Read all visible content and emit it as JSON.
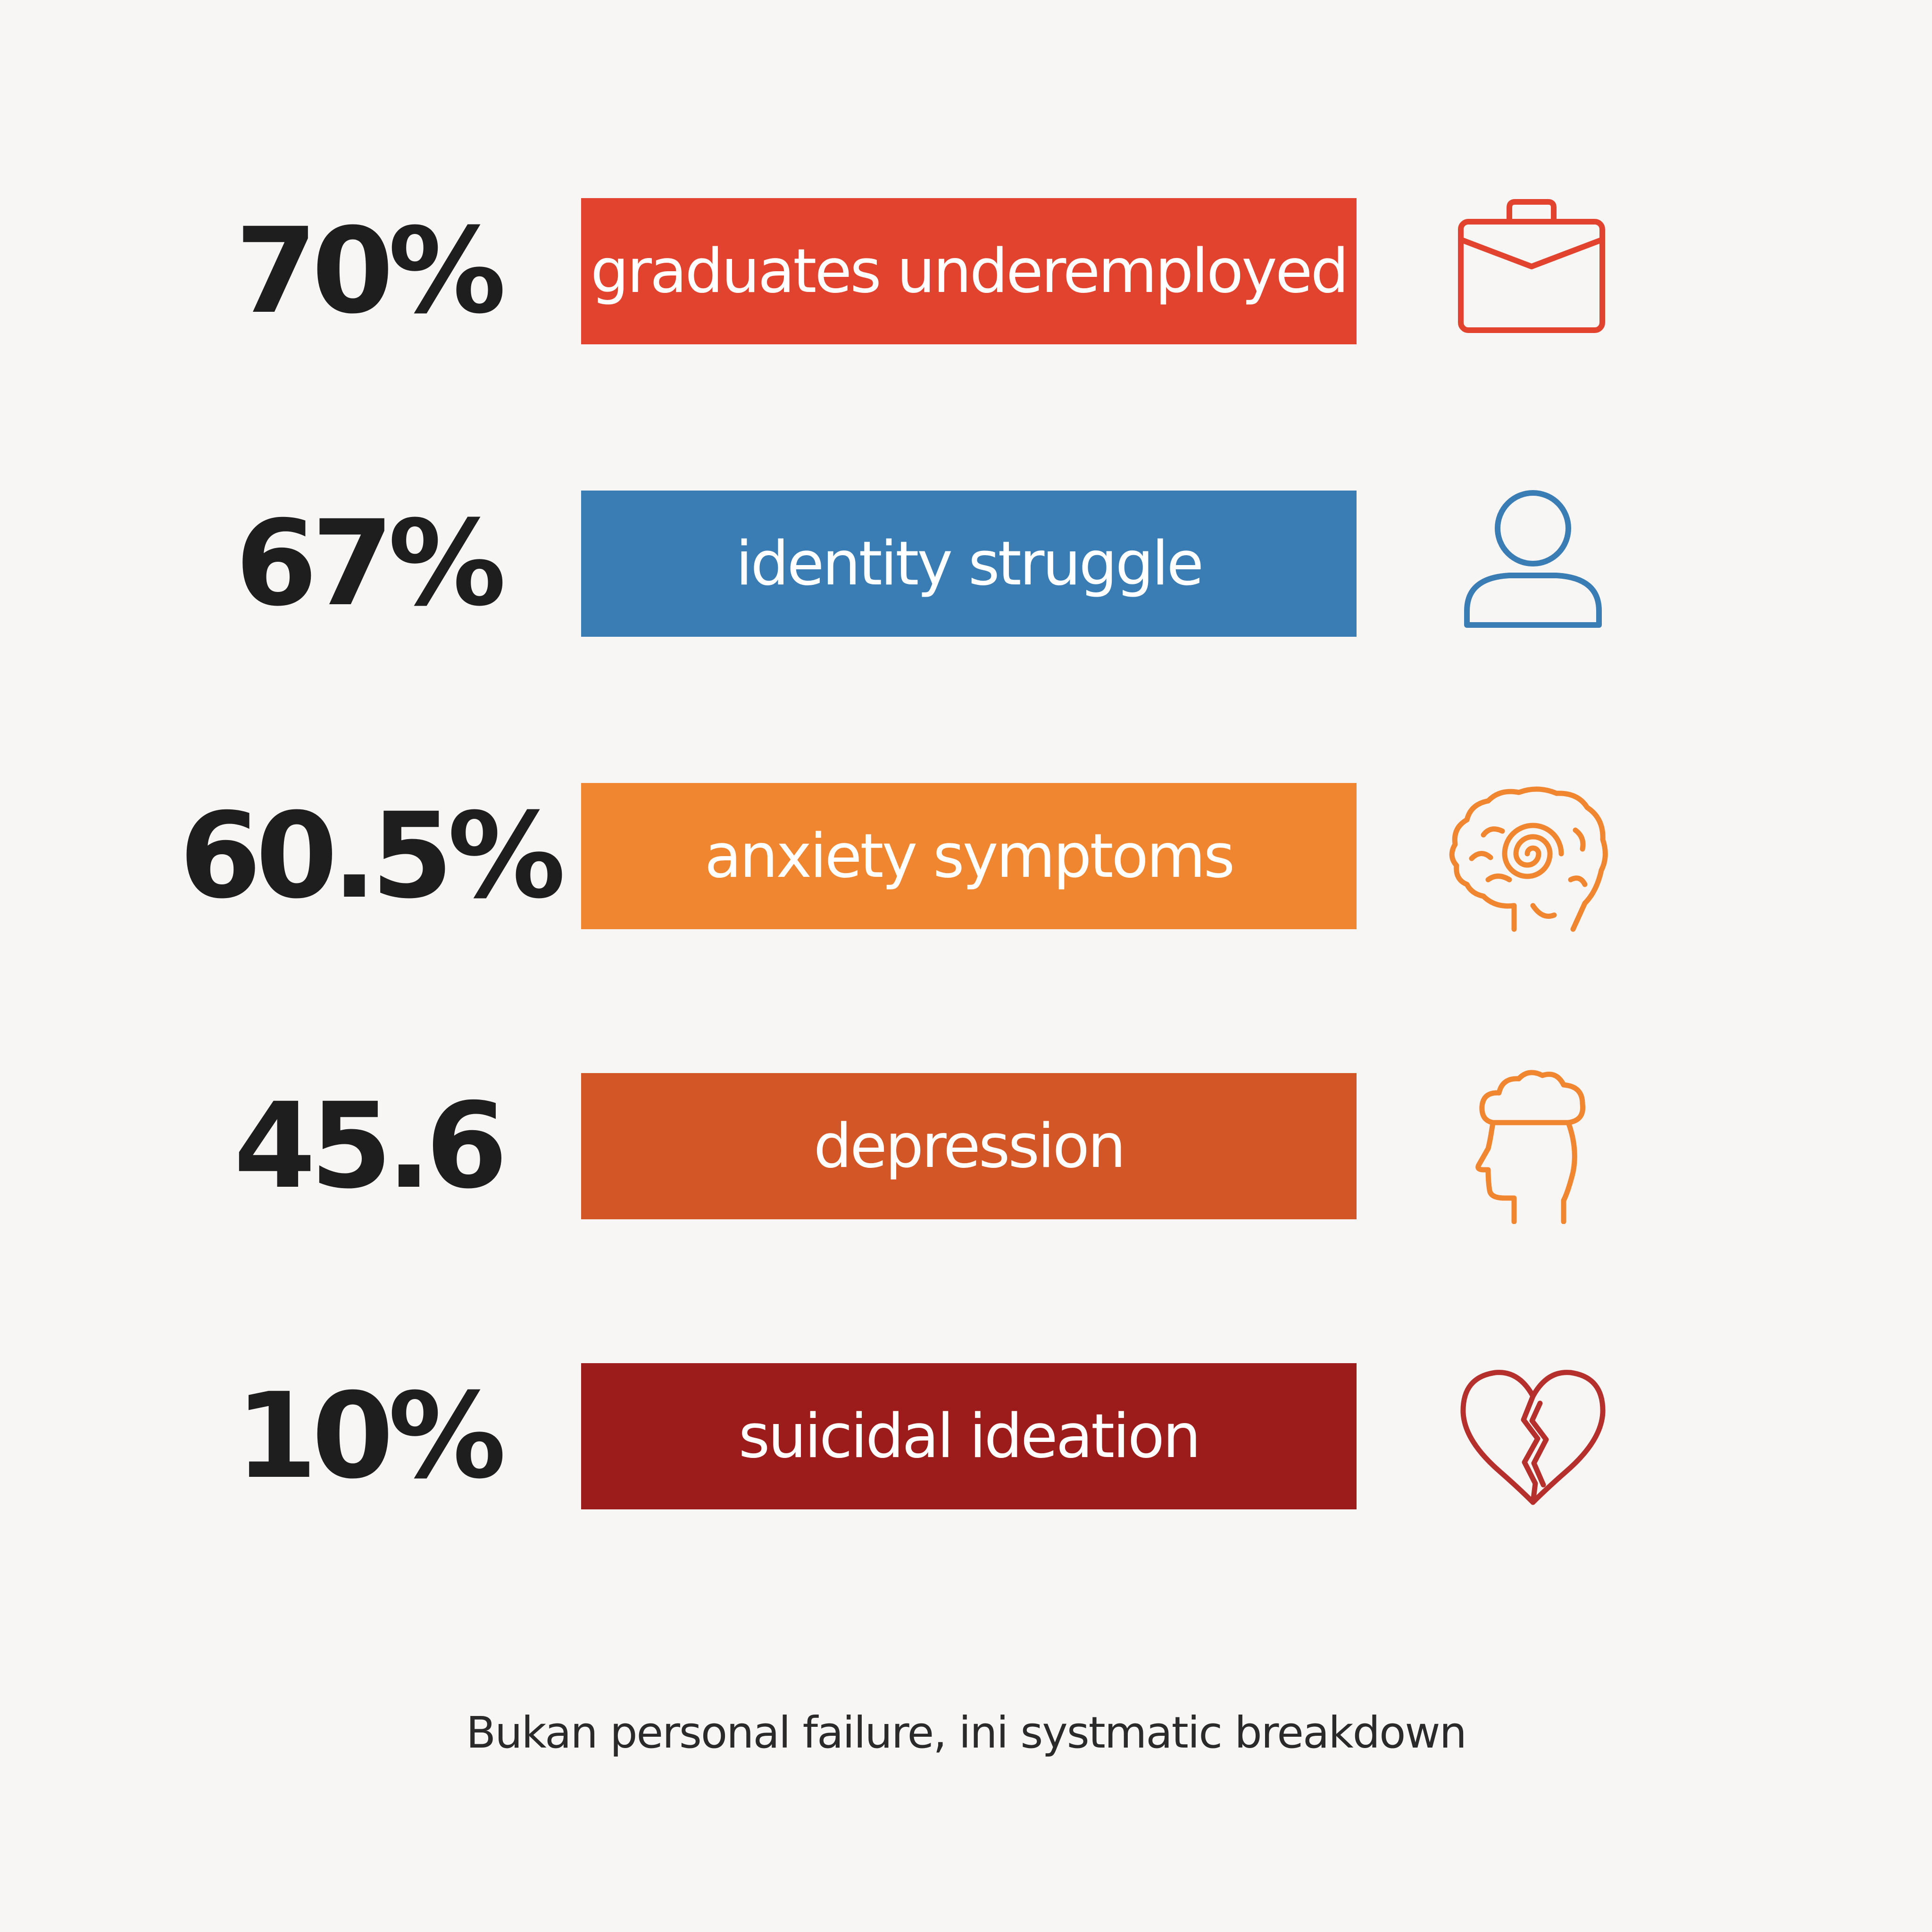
{
  "stats": [
    {
      "value": "70%",
      "label": "graduates underemployed",
      "color": "#e2432f",
      "icon": "briefcase-icon"
    },
    {
      "value": "67%",
      "label": "identity struggle",
      "color": "#3a7db5",
      "icon": "person-icon"
    },
    {
      "value": "60.5%",
      "label": "anxiety symptoms",
      "color": "#f0862f",
      "icon": "brain-icon"
    },
    {
      "value": "45.6",
      "label": "depression",
      "color": "#d35626",
      "icon": "head-cloud-icon"
    },
    {
      "value": "10%",
      "label": "suicidal ideation",
      "color": "#9b1c1a",
      "icon": "broken-heart-icon"
    }
  ],
  "caption": "Bukan personal failure, ini systmatic breakdown"
}
